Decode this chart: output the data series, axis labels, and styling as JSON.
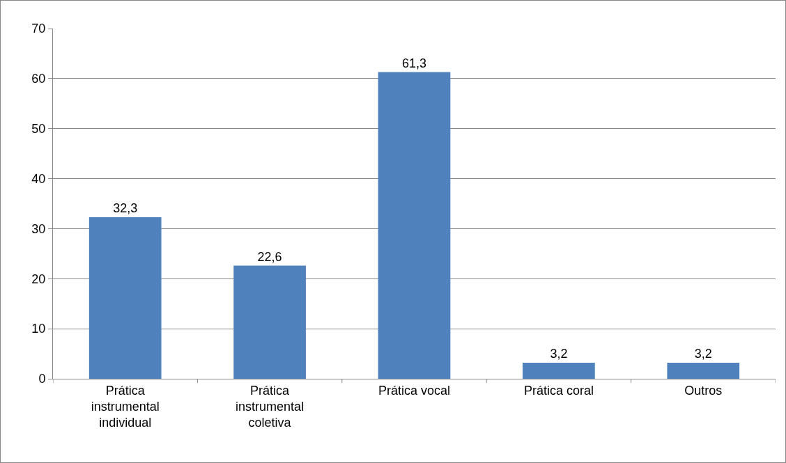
{
  "chart_data": {
    "type": "bar",
    "categories": [
      "Prática\ninstrumental\nindividual",
      "Prática\ninstrumental\ncoletiva",
      "Prática vocal",
      "Prática coral",
      "Outros"
    ],
    "values": [
      32.3,
      22.6,
      61.3,
      3.2,
      3.2
    ],
    "value_labels": [
      "32,3",
      "22,6",
      "61,3",
      "3,2",
      "3,2"
    ],
    "color": "#4f81bd",
    "ylim": [
      0,
      70
    ],
    "yticks": [
      0,
      10,
      20,
      30,
      40,
      50,
      60,
      70
    ],
    "grid": "y"
  }
}
